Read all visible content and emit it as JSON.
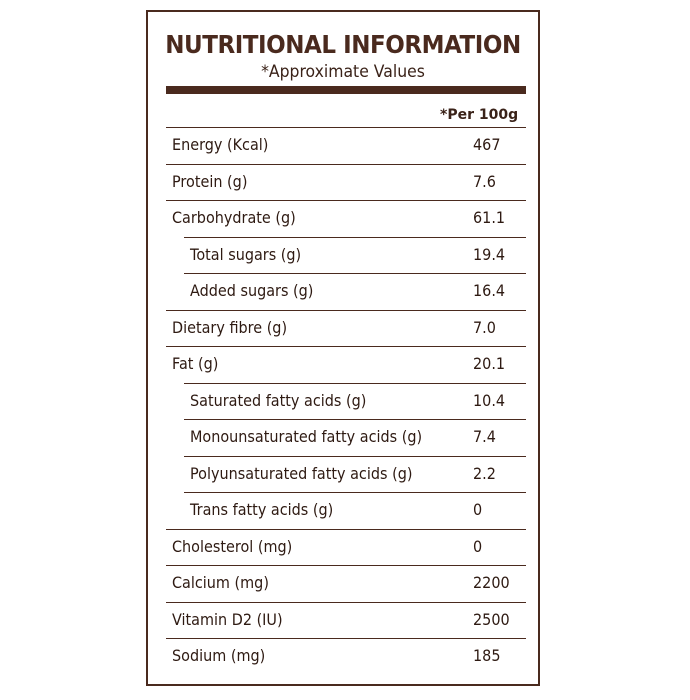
{
  "header": {
    "title": "NUTRITIONAL INFORMATION",
    "subtitle": "*Approximate Values",
    "column_header": "*Per 100g"
  },
  "rows": [
    {
      "label": "Energy (Kcal)",
      "value": "467",
      "indent": false
    },
    {
      "label": "Protein (g)",
      "value": "7.6",
      "indent": false
    },
    {
      "label": "Carbohydrate (g)",
      "value": "61.1",
      "indent": false
    },
    {
      "label": "Total sugars (g)",
      "value": "19.4",
      "indent": true
    },
    {
      "label": "Added sugars (g)",
      "value": "16.4",
      "indent": true
    },
    {
      "label": "Dietary fibre (g)",
      "value": "7.0",
      "indent": false
    },
    {
      "label": "Fat (g)",
      "value": "20.1",
      "indent": false
    },
    {
      "label": "Saturated fatty acids (g)",
      "value": "10.4",
      "indent": true
    },
    {
      "label": "Monounsaturated fatty acids (g)",
      "value": "7.4",
      "indent": true
    },
    {
      "label": "Polyunsaturated fatty acids (g)",
      "value": "2.2",
      "indent": true
    },
    {
      "label": "Trans fatty acids (g)",
      "value": "0",
      "indent": true
    },
    {
      "label": "Cholesterol (mg)",
      "value": "0",
      "indent": false
    },
    {
      "label": "Calcium (mg)",
      "value": "2200",
      "indent": false
    },
    {
      "label": "Vitamin D2 (IU)",
      "value": "2500",
      "indent": false
    },
    {
      "label": "Sodium (mg)",
      "value": "185",
      "indent": false
    }
  ],
  "colors": {
    "border": "#4a2a1e",
    "text": "#2e1a12"
  }
}
